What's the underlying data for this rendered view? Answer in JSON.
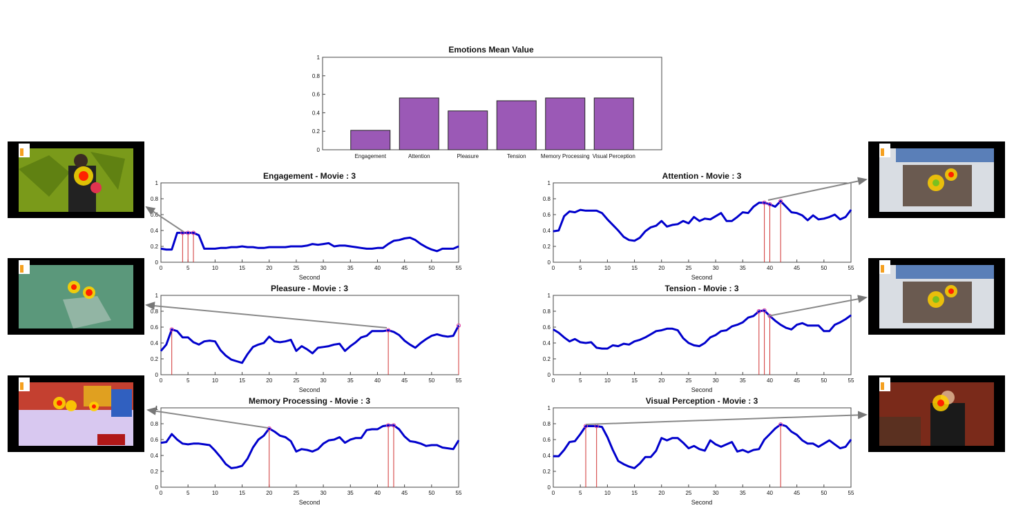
{
  "chart_data": [
    {
      "id": "bar",
      "type": "bar",
      "title": "Emotions Mean Value",
      "categories": [
        "Engagement",
        "Attention",
        "Pleasure",
        "Tension",
        "Memory Processing",
        "Visual Perception"
      ],
      "values": [
        0.21,
        0.56,
        0.42,
        0.53,
        0.56,
        0.56
      ],
      "ylim": [
        0,
        1
      ],
      "yticks": [
        "0",
        "0.2",
        "0.4",
        "0.6",
        "0.8",
        "1"
      ],
      "bar_color": "#9b59b6"
    },
    {
      "id": "engagement",
      "type": "line",
      "title": "Engagement - Movie : 3",
      "xlabel": "Second",
      "xlim": [
        0,
        55
      ],
      "ylim": [
        0,
        1
      ],
      "xticks": [
        "0",
        "5",
        "10",
        "15",
        "20",
        "25",
        "30",
        "35",
        "40",
        "45",
        "50",
        "55"
      ],
      "yticks": [
        "0",
        "0.2",
        "0.4",
        "0.6",
        "0.8",
        "1"
      ],
      "line_color": "#0000cc",
      "values": [
        0.17,
        0.16,
        0.16,
        0.37,
        0.37,
        0.37,
        0.37,
        0.34,
        0.17,
        0.17,
        0.17,
        0.18,
        0.18,
        0.19,
        0.19,
        0.2,
        0.19,
        0.19,
        0.18,
        0.18,
        0.19,
        0.19,
        0.19,
        0.19,
        0.2,
        0.2,
        0.2,
        0.21,
        0.23,
        0.22,
        0.23,
        0.24,
        0.2,
        0.21,
        0.21,
        0.2,
        0.19,
        0.18,
        0.17,
        0.17,
        0.18,
        0.18,
        0.23,
        0.27,
        0.28,
        0.3,
        0.31,
        0.28,
        0.23,
        0.19,
        0.16,
        0.14,
        0.17,
        0.17,
        0.17,
        0.2
      ],
      "markers": [
        4,
        5,
        6
      ]
    },
    {
      "id": "attention",
      "type": "line",
      "title": "Attention - Movie : 3",
      "xlabel": "Second",
      "xlim": [
        0,
        55
      ],
      "ylim": [
        0,
        1
      ],
      "xticks": [
        "0",
        "5",
        "10",
        "15",
        "20",
        "25",
        "30",
        "35",
        "40",
        "45",
        "50",
        "55"
      ],
      "yticks": [
        "0",
        "0.2",
        "0.4",
        "0.6",
        "0.8",
        "1"
      ],
      "line_color": "#0000cc",
      "values": [
        0.39,
        0.4,
        0.58,
        0.64,
        0.63,
        0.66,
        0.65,
        0.65,
        0.65,
        0.62,
        0.54,
        0.47,
        0.4,
        0.32,
        0.28,
        0.27,
        0.31,
        0.39,
        0.44,
        0.46,
        0.52,
        0.45,
        0.47,
        0.48,
        0.52,
        0.49,
        0.57,
        0.52,
        0.55,
        0.54,
        0.58,
        0.62,
        0.52,
        0.52,
        0.57,
        0.63,
        0.62,
        0.7,
        0.75,
        0.75,
        0.73,
        0.7,
        0.77,
        0.7,
        0.63,
        0.62,
        0.59,
        0.53,
        0.59,
        0.54,
        0.55,
        0.57,
        0.6,
        0.54,
        0.57,
        0.66
      ],
      "markers": [
        39,
        40,
        42
      ]
    },
    {
      "id": "pleasure",
      "type": "line",
      "title": "Pleasure - Movie : 3",
      "xlabel": "Second",
      "xlim": [
        0,
        55
      ],
      "ylim": [
        0,
        1
      ],
      "xticks": [
        "0",
        "5",
        "10",
        "15",
        "20",
        "25",
        "30",
        "35",
        "40",
        "45",
        "50",
        "55"
      ],
      "yticks": [
        "0",
        "0.2",
        "0.4",
        "0.6",
        "0.8",
        "1"
      ],
      "line_color": "#0000cc",
      "values": [
        0.3,
        0.38,
        0.57,
        0.55,
        0.47,
        0.47,
        0.41,
        0.38,
        0.42,
        0.43,
        0.42,
        0.31,
        0.24,
        0.19,
        0.17,
        0.15,
        0.26,
        0.35,
        0.38,
        0.4,
        0.48,
        0.42,
        0.41,
        0.42,
        0.44,
        0.3,
        0.36,
        0.32,
        0.27,
        0.34,
        0.35,
        0.36,
        0.38,
        0.39,
        0.3,
        0.36,
        0.41,
        0.47,
        0.49,
        0.55,
        0.55,
        0.55,
        0.56,
        0.54,
        0.5,
        0.43,
        0.38,
        0.34,
        0.4,
        0.45,
        0.49,
        0.51,
        0.49,
        0.48,
        0.49,
        0.62
      ],
      "markers": [
        2,
        42,
        55
      ]
    },
    {
      "id": "tension",
      "type": "line",
      "title": "Tension - Movie : 3",
      "xlabel": "Second",
      "xlim": [
        0,
        55
      ],
      "ylim": [
        0,
        1
      ],
      "xticks": [
        "0",
        "5",
        "10",
        "15",
        "20",
        "25",
        "30",
        "35",
        "40",
        "45",
        "50",
        "55"
      ],
      "yticks": [
        "0",
        "0.2",
        "0.4",
        "0.6",
        "0.8",
        "1"
      ],
      "line_color": "#0000cc",
      "values": [
        0.57,
        0.53,
        0.47,
        0.42,
        0.45,
        0.41,
        0.4,
        0.41,
        0.34,
        0.33,
        0.33,
        0.37,
        0.36,
        0.39,
        0.38,
        0.42,
        0.44,
        0.47,
        0.51,
        0.55,
        0.56,
        0.58,
        0.58,
        0.56,
        0.46,
        0.4,
        0.37,
        0.36,
        0.4,
        0.47,
        0.5,
        0.55,
        0.56,
        0.61,
        0.63,
        0.66,
        0.72,
        0.74,
        0.8,
        0.81,
        0.74,
        0.68,
        0.63,
        0.59,
        0.57,
        0.63,
        0.65,
        0.62,
        0.62,
        0.62,
        0.55,
        0.55,
        0.63,
        0.66,
        0.7,
        0.75
      ],
      "markers": [
        38,
        39,
        40
      ]
    },
    {
      "id": "memory",
      "type": "line",
      "title": "Memory Processing - Movie : 3",
      "xlabel": "Second",
      "xlim": [
        0,
        55
      ],
      "ylim": [
        0,
        1
      ],
      "xticks": [
        "0",
        "5",
        "10",
        "15",
        "20",
        "25",
        "30",
        "35",
        "40",
        "45",
        "50",
        "55"
      ],
      "yticks": [
        "0",
        "0.2",
        "0.4",
        "0.6",
        "0.8",
        "1"
      ],
      "line_color": "#0000cc",
      "values": [
        0.56,
        0.57,
        0.67,
        0.6,
        0.55,
        0.54,
        0.55,
        0.55,
        0.54,
        0.53,
        0.46,
        0.38,
        0.29,
        0.24,
        0.25,
        0.27,
        0.36,
        0.5,
        0.6,
        0.65,
        0.74,
        0.7,
        0.65,
        0.63,
        0.58,
        0.45,
        0.48,
        0.47,
        0.45,
        0.48,
        0.55,
        0.59,
        0.6,
        0.63,
        0.56,
        0.6,
        0.62,
        0.62,
        0.72,
        0.73,
        0.73,
        0.77,
        0.78,
        0.78,
        0.73,
        0.64,
        0.58,
        0.57,
        0.55,
        0.52,
        0.53,
        0.53,
        0.5,
        0.49,
        0.48,
        0.59
      ],
      "markers": [
        20,
        42,
        43
      ]
    },
    {
      "id": "visual",
      "type": "line",
      "title": "Visual Perception - Movie : 3",
      "xlabel": "Second",
      "xlim": [
        0,
        55
      ],
      "ylim": [
        0,
        1
      ],
      "xticks": [
        "0",
        "5",
        "10",
        "15",
        "20",
        "25",
        "30",
        "35",
        "40",
        "45",
        "50",
        "55"
      ],
      "yticks": [
        "0",
        "0.2",
        "0.4",
        "0.6",
        "0.8",
        "1"
      ],
      "line_color": "#0000cc",
      "values": [
        0.39,
        0.39,
        0.47,
        0.57,
        0.58,
        0.67,
        0.77,
        0.77,
        0.77,
        0.76,
        0.63,
        0.47,
        0.33,
        0.29,
        0.26,
        0.24,
        0.3,
        0.38,
        0.38,
        0.46,
        0.62,
        0.59,
        0.62,
        0.62,
        0.56,
        0.49,
        0.52,
        0.48,
        0.46,
        0.59,
        0.54,
        0.51,
        0.54,
        0.57,
        0.45,
        0.47,
        0.44,
        0.47,
        0.48,
        0.6,
        0.67,
        0.74,
        0.79,
        0.77,
        0.7,
        0.66,
        0.59,
        0.55,
        0.55,
        0.51,
        0.55,
        0.59,
        0.54,
        0.49,
        0.51,
        0.6
      ],
      "markers": [
        6,
        8,
        42
      ]
    }
  ]
}
